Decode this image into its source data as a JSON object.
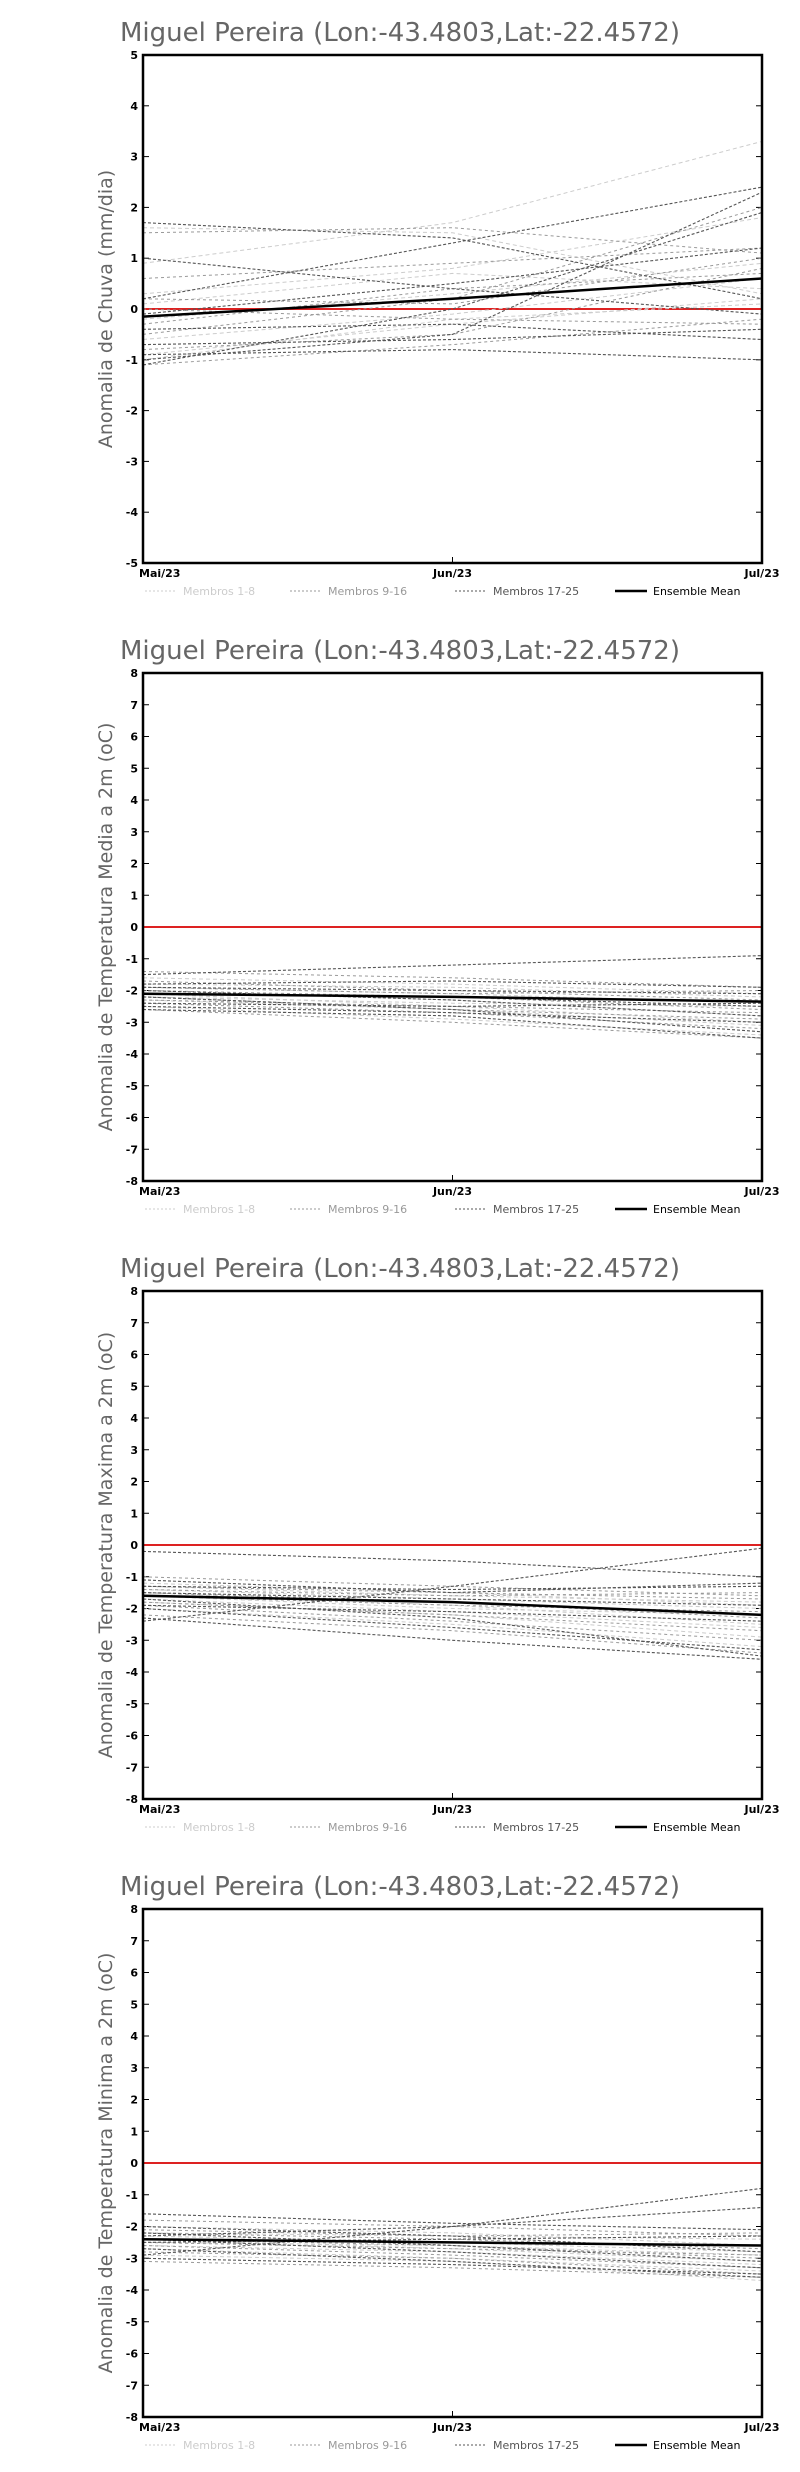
{
  "chart_data": [
    {
      "type": "line",
      "title": "Miguel Pereira (Lon:-43.4803,Lat:-22.4572)",
      "ylabel": "Anomalia de Chuva (mm/dia)",
      "xlabel": "",
      "categories": [
        "Mai/23",
        "Jun/23",
        "Jul/23"
      ],
      "ylim": [
        -5,
        5
      ],
      "yticks": [
        -5,
        -4,
        -3,
        -2,
        -1,
        0,
        1,
        2,
        3,
        4,
        5
      ],
      "legend": {
        "placement": "bottom",
        "entries": [
          {
            "label": "Membros 1-8",
            "color": "#cccccc"
          },
          {
            "label": "Membros 9-16",
            "color": "#999999"
          },
          {
            "label": "Membros 17-25",
            "color": "#555555"
          },
          {
            "label": "Ensemble Mean",
            "color": "#000000"
          }
        ]
      },
      "reference_line": {
        "y": 0,
        "color": "#dd2222"
      },
      "series": [
        {
          "group": 1,
          "values": [
            0.9,
            1.7,
            3.3
          ]
        },
        {
          "group": 1,
          "values": [
            1.6,
            1.5,
            0.3
          ]
        },
        {
          "group": 1,
          "values": [
            0.3,
            0.8,
            1.8
          ]
        },
        {
          "group": 1,
          "values": [
            -0.2,
            0.3,
            0.9
          ]
        },
        {
          "group": 1,
          "values": [
            -0.6,
            -0.1,
            0.6
          ]
        },
        {
          "group": 1,
          "values": [
            -0.9,
            -0.3,
            0.2
          ]
        },
        {
          "group": 1,
          "values": [
            -1.0,
            -0.2,
            0.1
          ]
        },
        {
          "group": 1,
          "values": [
            0.1,
            0.7,
            0.4
          ]
        },
        {
          "group": 2,
          "values": [
            1.5,
            1.6,
            1.1
          ]
        },
        {
          "group": 2,
          "values": [
            0.2,
            0.1,
            1.0
          ]
        },
        {
          "group": 2,
          "values": [
            -0.5,
            0.2,
            2.0
          ]
        },
        {
          "group": 2,
          "values": [
            -0.8,
            -0.5,
            0.8
          ]
        },
        {
          "group": 2,
          "values": [
            -1.1,
            -0.7,
            -0.2
          ]
        },
        {
          "group": 2,
          "values": [
            0.0,
            -0.2,
            -0.3
          ]
        },
        {
          "group": 2,
          "values": [
            -0.3,
            0.4,
            0.7
          ]
        },
        {
          "group": 2,
          "values": [
            0.6,
            0.9,
            1.2
          ]
        },
        {
          "group": 3,
          "values": [
            1.7,
            1.4,
            0.2
          ]
        },
        {
          "group": 3,
          "values": [
            1.0,
            0.4,
            -0.1
          ]
        },
        {
          "group": 3,
          "values": [
            0.2,
            1.3,
            2.4
          ]
        },
        {
          "group": 3,
          "values": [
            -0.1,
            0.5,
            1.2
          ]
        },
        {
          "group": 3,
          "values": [
            -0.4,
            -0.3,
            -0.6
          ]
        },
        {
          "group": 3,
          "values": [
            -0.7,
            -0.6,
            -0.4
          ]
        },
        {
          "group": 3,
          "values": [
            -0.9,
            -0.8,
            -1.0
          ]
        },
        {
          "group": 3,
          "values": [
            -1.1,
            0.0,
            1.9
          ]
        },
        {
          "group": 3,
          "values": [
            -1.0,
            -0.5,
            2.3
          ]
        },
        {
          "group": 4,
          "values": [
            -0.15,
            0.2,
            0.6
          ]
        }
      ]
    },
    {
      "type": "line",
      "title": "Miguel Pereira (Lon:-43.4803,Lat:-22.4572)",
      "ylabel": "Anomalia de Temperatura Media a 2m (oC)",
      "xlabel": "",
      "categories": [
        "Mai/23",
        "Jun/23",
        "Jul/23"
      ],
      "ylim": [
        -8,
        8
      ],
      "yticks": [
        -8,
        -7,
        -6,
        -5,
        -4,
        -3,
        -2,
        -1,
        0,
        1,
        2,
        3,
        4,
        5,
        6,
        7,
        8
      ],
      "legend": {
        "placement": "bottom",
        "entries": [
          {
            "label": "Membros 1-8",
            "color": "#cccccc"
          },
          {
            "label": "Membros 9-16",
            "color": "#999999"
          },
          {
            "label": "Membros 17-25",
            "color": "#555555"
          },
          {
            "label": "Ensemble Mean",
            "color": "#000000"
          }
        ]
      },
      "reference_line": {
        "y": 0,
        "color": "#dd2222"
      },
      "series": [
        {
          "group": 1,
          "values": [
            -1.6,
            -1.8,
            -2.1
          ]
        },
        {
          "group": 1,
          "values": [
            -2.0,
            -2.3,
            -2.8
          ]
        },
        {
          "group": 1,
          "values": [
            -2.3,
            -2.6,
            -3.1
          ]
        },
        {
          "group": 1,
          "values": [
            -1.8,
            -1.9,
            -2.2
          ]
        },
        {
          "group": 1,
          "values": [
            -2.2,
            -2.4,
            -2.5
          ]
        },
        {
          "group": 1,
          "values": [
            -2.5,
            -2.9,
            -3.4
          ]
        },
        {
          "group": 1,
          "values": [
            -1.9,
            -2.1,
            -2.4
          ]
        },
        {
          "group": 1,
          "values": [
            -2.1,
            -2.5,
            -3.0
          ]
        },
        {
          "group": 2,
          "values": [
            -1.4,
            -1.6,
            -1.9
          ]
        },
        {
          "group": 2,
          "values": [
            -2.4,
            -2.7,
            -3.2
          ]
        },
        {
          "group": 2,
          "values": [
            -2.0,
            -2.2,
            -2.6
          ]
        },
        {
          "group": 2,
          "values": [
            -2.6,
            -3.0,
            -3.5
          ]
        },
        {
          "group": 2,
          "values": [
            -1.7,
            -2.0,
            -2.3
          ]
        },
        {
          "group": 2,
          "values": [
            -2.2,
            -2.6,
            -2.9
          ]
        },
        {
          "group": 2,
          "values": [
            -1.9,
            -2.1,
            -2.0
          ]
        },
        {
          "group": 2,
          "values": [
            -2.3,
            -2.5,
            -2.7
          ]
        },
        {
          "group": 3,
          "values": [
            -1.5,
            -1.2,
            -0.9
          ]
        },
        {
          "group": 3,
          "values": [
            -1.8,
            -1.7,
            -1.9
          ]
        },
        {
          "group": 3,
          "values": [
            -2.0,
            -2.3,
            -2.8
          ]
        },
        {
          "group": 3,
          "values": [
            -2.2,
            -2.6,
            -3.3
          ]
        },
        {
          "group": 3,
          "values": [
            -2.4,
            -2.5,
            -2.4
          ]
        },
        {
          "group": 3,
          "values": [
            -2.6,
            -2.8,
            -3.5
          ]
        },
        {
          "group": 3,
          "values": [
            -1.9,
            -2.0,
            -2.1
          ]
        },
        {
          "group": 3,
          "values": [
            -2.1,
            -2.2,
            -2.5
          ]
        },
        {
          "group": 3,
          "values": [
            -2.5,
            -2.7,
            -3.0
          ]
        },
        {
          "group": 4,
          "values": [
            -2.1,
            -2.2,
            -2.35
          ]
        }
      ]
    },
    {
      "type": "line",
      "title": "Miguel Pereira (Lon:-43.4803,Lat:-22.4572)",
      "ylabel": "Anomalia de Temperatura Maxima a 2m (oC)",
      "xlabel": "",
      "categories": [
        "Mai/23",
        "Jun/23",
        "Jul/23"
      ],
      "ylim": [
        -8,
        8
      ],
      "yticks": [
        -8,
        -7,
        -6,
        -5,
        -4,
        -3,
        -2,
        -1,
        0,
        1,
        2,
        3,
        4,
        5,
        6,
        7,
        8
      ],
      "legend": {
        "placement": "bottom",
        "entries": [
          {
            "label": "Membros 1-8",
            "color": "#cccccc"
          },
          {
            "label": "Membros 9-16",
            "color": "#999999"
          },
          {
            "label": "Membros 17-25",
            "color": "#555555"
          },
          {
            "label": "Ensemble Mean",
            "color": "#000000"
          }
        ]
      },
      "reference_line": {
        "y": 0,
        "color": "#dd2222"
      },
      "series": [
        {
          "group": 1,
          "values": [
            -1.2,
            -1.5,
            -1.9
          ]
        },
        {
          "group": 1,
          "values": [
            -1.5,
            -1.9,
            -2.5
          ]
        },
        {
          "group": 1,
          "values": [
            -1.8,
            -2.2,
            -2.9
          ]
        },
        {
          "group": 1,
          "values": [
            -1.3,
            -1.6,
            -1.8
          ]
        },
        {
          "group": 1,
          "values": [
            -1.6,
            -2.0,
            -2.2
          ]
        },
        {
          "group": 1,
          "values": [
            -2.0,
            -2.5,
            -3.2
          ]
        },
        {
          "group": 1,
          "values": [
            -1.4,
            -1.7,
            -2.0
          ]
        },
        {
          "group": 1,
          "values": [
            -1.7,
            -2.1,
            -2.6
          ]
        },
        {
          "group": 2,
          "values": [
            -1.0,
            -1.3,
            -1.6
          ]
        },
        {
          "group": 2,
          "values": [
            -1.9,
            -2.4,
            -3.0
          ]
        },
        {
          "group": 2,
          "values": [
            -1.5,
            -1.8,
            -2.3
          ]
        },
        {
          "group": 2,
          "values": [
            -2.2,
            -2.7,
            -3.4
          ]
        },
        {
          "group": 2,
          "values": [
            -1.3,
            -1.5,
            -1.7
          ]
        },
        {
          "group": 2,
          "values": [
            -1.8,
            -2.2,
            -2.7
          ]
        },
        {
          "group": 2,
          "values": [
            -1.4,
            -1.6,
            -1.5
          ]
        },
        {
          "group": 2,
          "values": [
            -1.6,
            -1.9,
            -2.1
          ]
        },
        {
          "group": 3,
          "values": [
            -0.2,
            -0.5,
            -1.0
          ]
        },
        {
          "group": 3,
          "values": [
            -2.4,
            -1.3,
            -0.1
          ]
        },
        {
          "group": 3,
          "values": [
            -1.1,
            -1.5,
            -1.2
          ]
        },
        {
          "group": 3,
          "values": [
            -1.9,
            -2.1,
            -2.4
          ]
        },
        {
          "group": 3,
          "values": [
            -2.3,
            -3.0,
            -3.6
          ]
        },
        {
          "group": 3,
          "values": [
            -1.7,
            -2.3,
            -3.5
          ]
        },
        {
          "group": 3,
          "values": [
            -1.5,
            -1.7,
            -1.9
          ]
        },
        {
          "group": 3,
          "values": [
            -1.3,
            -1.4,
            -1.3
          ]
        },
        {
          "group": 3,
          "values": [
            -2.0,
            -2.6,
            -3.3
          ]
        },
        {
          "group": 4,
          "values": [
            -1.6,
            -1.8,
            -2.2
          ]
        }
      ]
    },
    {
      "type": "line",
      "title": "Miguel Pereira (Lon:-43.4803,Lat:-22.4572)",
      "ylabel": "Anomalia de Temperatura Minima a 2m (oC)",
      "xlabel": "",
      "categories": [
        "Mai/23",
        "Jun/23",
        "Jul/23"
      ],
      "ylim": [
        -8,
        8
      ],
      "yticks": [
        -8,
        -7,
        -6,
        -5,
        -4,
        -3,
        -2,
        -1,
        0,
        1,
        2,
        3,
        4,
        5,
        6,
        7,
        8
      ],
      "legend": {
        "placement": "bottom",
        "entries": [
          {
            "label": "Membros 1-8",
            "color": "#cccccc"
          },
          {
            "label": "Membros 9-16",
            "color": "#999999"
          },
          {
            "label": "Membros 17-25",
            "color": "#555555"
          },
          {
            "label": "Ensemble Mean",
            "color": "#000000"
          }
        ]
      },
      "reference_line": {
        "y": 0,
        "color": "#dd2222"
      },
      "series": [
        {
          "group": 1,
          "values": [
            -2.0,
            -2.2,
            -2.6
          ]
        },
        {
          "group": 1,
          "values": [
            -2.4,
            -2.7,
            -3.1
          ]
        },
        {
          "group": 1,
          "values": [
            -2.7,
            -3.0,
            -3.4
          ]
        },
        {
          "group": 1,
          "values": [
            -2.2,
            -2.3,
            -2.4
          ]
        },
        {
          "group": 1,
          "values": [
            -2.5,
            -2.6,
            -2.9
          ]
        },
        {
          "group": 1,
          "values": [
            -2.9,
            -3.1,
            -3.7
          ]
        },
        {
          "group": 1,
          "values": [
            -2.3,
            -2.5,
            -2.8
          ]
        },
        {
          "group": 1,
          "values": [
            -2.6,
            -2.8,
            -3.2
          ]
        },
        {
          "group": 2,
          "values": [
            -1.8,
            -2.0,
            -2.3
          ]
        },
        {
          "group": 2,
          "values": [
            -2.8,
            -3.0,
            -3.5
          ]
        },
        {
          "group": 2,
          "values": [
            -2.4,
            -2.6,
            -3.0
          ]
        },
        {
          "group": 2,
          "values": [
            -3.1,
            -3.3,
            -3.6
          ]
        },
        {
          "group": 2,
          "values": [
            -2.1,
            -2.3,
            -2.2
          ]
        },
        {
          "group": 2,
          "values": [
            -2.6,
            -2.9,
            -3.3
          ]
        },
        {
          "group": 2,
          "values": [
            -2.2,
            -2.4,
            -2.7
          ]
        },
        {
          "group": 2,
          "values": [
            -2.5,
            -2.7,
            -2.9
          ]
        },
        {
          "group": 3,
          "values": [
            -1.6,
            -1.9,
            -2.1
          ]
        },
        {
          "group": 3,
          "values": [
            -2.9,
            -2.0,
            -0.8
          ]
        },
        {
          "group": 3,
          "values": [
            -2.3,
            -2.0,
            -1.4
          ]
        },
        {
          "group": 3,
          "values": [
            -2.0,
            -2.3,
            -2.8
          ]
        },
        {
          "group": 3,
          "values": [
            -2.7,
            -3.1,
            -3.6
          ]
        },
        {
          "group": 3,
          "values": [
            -2.5,
            -2.4,
            -2.3
          ]
        },
        {
          "group": 3,
          "values": [
            -2.2,
            -2.6,
            -3.1
          ]
        },
        {
          "group": 3,
          "values": [
            -3.0,
            -3.2,
            -3.5
          ]
        },
        {
          "group": 3,
          "values": [
            -2.4,
            -2.8,
            -3.3
          ]
        },
        {
          "group": 4,
          "values": [
            -2.4,
            -2.5,
            -2.6
          ]
        }
      ]
    }
  ]
}
